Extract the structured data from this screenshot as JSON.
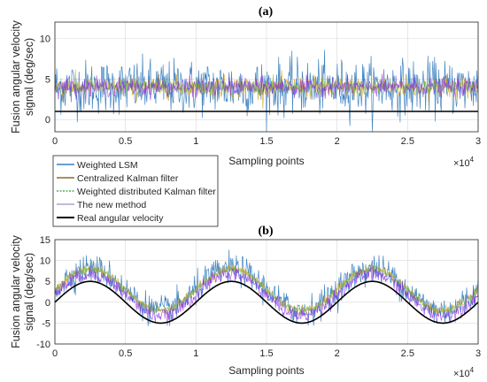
{
  "chart_data": [
    {
      "type": "line",
      "title": "(a)",
      "xlabel": "Sampling points",
      "ylabel": [
        "Fusion angular velocity",
        "signal (deg/sec)"
      ],
      "x_multiplier": "×10",
      "x_multiplier_exp": "4",
      "xlim": [
        0,
        3
      ],
      "ylim": [
        -1.5,
        12
      ],
      "xticks": [
        "0",
        "0.5",
        "1",
        "1.5",
        "2",
        "2.5",
        "3"
      ],
      "yticks": [
        "0",
        "5",
        "10"
      ],
      "ytick_values": [
        0,
        5,
        10
      ],
      "grid": true,
      "series": [
        {
          "name": "Weighted LSM",
          "color": "#3a7fc0",
          "center": 4.0,
          "spread": 3.0
        },
        {
          "name": "Centralized Kalman filter",
          "color": "#d4a017",
          "center": 4.0,
          "spread": 1.2
        },
        {
          "name": "Weighted distributed Kalman filter",
          "color": "#7ab648",
          "center": 4.0,
          "spread": 0.8
        },
        {
          "name": "The new method",
          "color": "#8a2be2",
          "center": 4.0,
          "spread": 1.0
        },
        {
          "name": "Real angular velocity",
          "color": "#000000",
          "value": 1.0
        }
      ]
    },
    {
      "type": "line",
      "title": "(b)",
      "xlabel": "Sampling points",
      "ylabel": [
        "Fusion angular velocity",
        "signal (deg/sec)"
      ],
      "x_multiplier": "×10",
      "x_multiplier_exp": "4",
      "xlim": [
        0,
        3
      ],
      "ylim": [
        -10,
        15
      ],
      "xticks": [
        "0",
        "0.5",
        "1",
        "1.5",
        "2",
        "2.5",
        "3"
      ],
      "yticks": [
        "-10",
        "-5",
        "0",
        "5",
        "10",
        "15"
      ],
      "ytick_values": [
        -10,
        -5,
        0,
        5,
        10,
        15
      ],
      "grid": true,
      "real_signal": {
        "amplitude": 5,
        "period": 1.0,
        "phase_peak_x": 0.25
      },
      "series": [
        {
          "name": "Weighted LSM",
          "color": "#3a7fc0",
          "offset": 3.0,
          "spread": 3.2
        },
        {
          "name": "Centralized Kalman filter",
          "color": "#d4a017",
          "offset": 3.0,
          "spread": 1.0
        },
        {
          "name": "Weighted distributed Kalman filter",
          "color": "#7ab648",
          "offset": 3.0,
          "spread": 0.7
        },
        {
          "name": "The new method",
          "color": "#8a2be2",
          "offset": 1.8,
          "spread": 1.6
        },
        {
          "name": "Real angular velocity",
          "color": "#000000",
          "offset": 0
        }
      ]
    }
  ],
  "legend": {
    "placement": "between panels, left",
    "items": [
      {
        "label": "Weighted LSM",
        "color": "#3a7fc0",
        "style": "solid"
      },
      {
        "label": "Centralized Kalman filter",
        "color": "#8b6b2a",
        "style": "solid"
      },
      {
        "label": "Weighted distributed Kalman filter",
        "color": "#4caf50",
        "style": "dashed"
      },
      {
        "label": "The new method",
        "color": "#b39ddb",
        "style": "solid"
      },
      {
        "label": "Real angular velocity",
        "color": "#000000",
        "style": "solid-thick"
      }
    ]
  }
}
